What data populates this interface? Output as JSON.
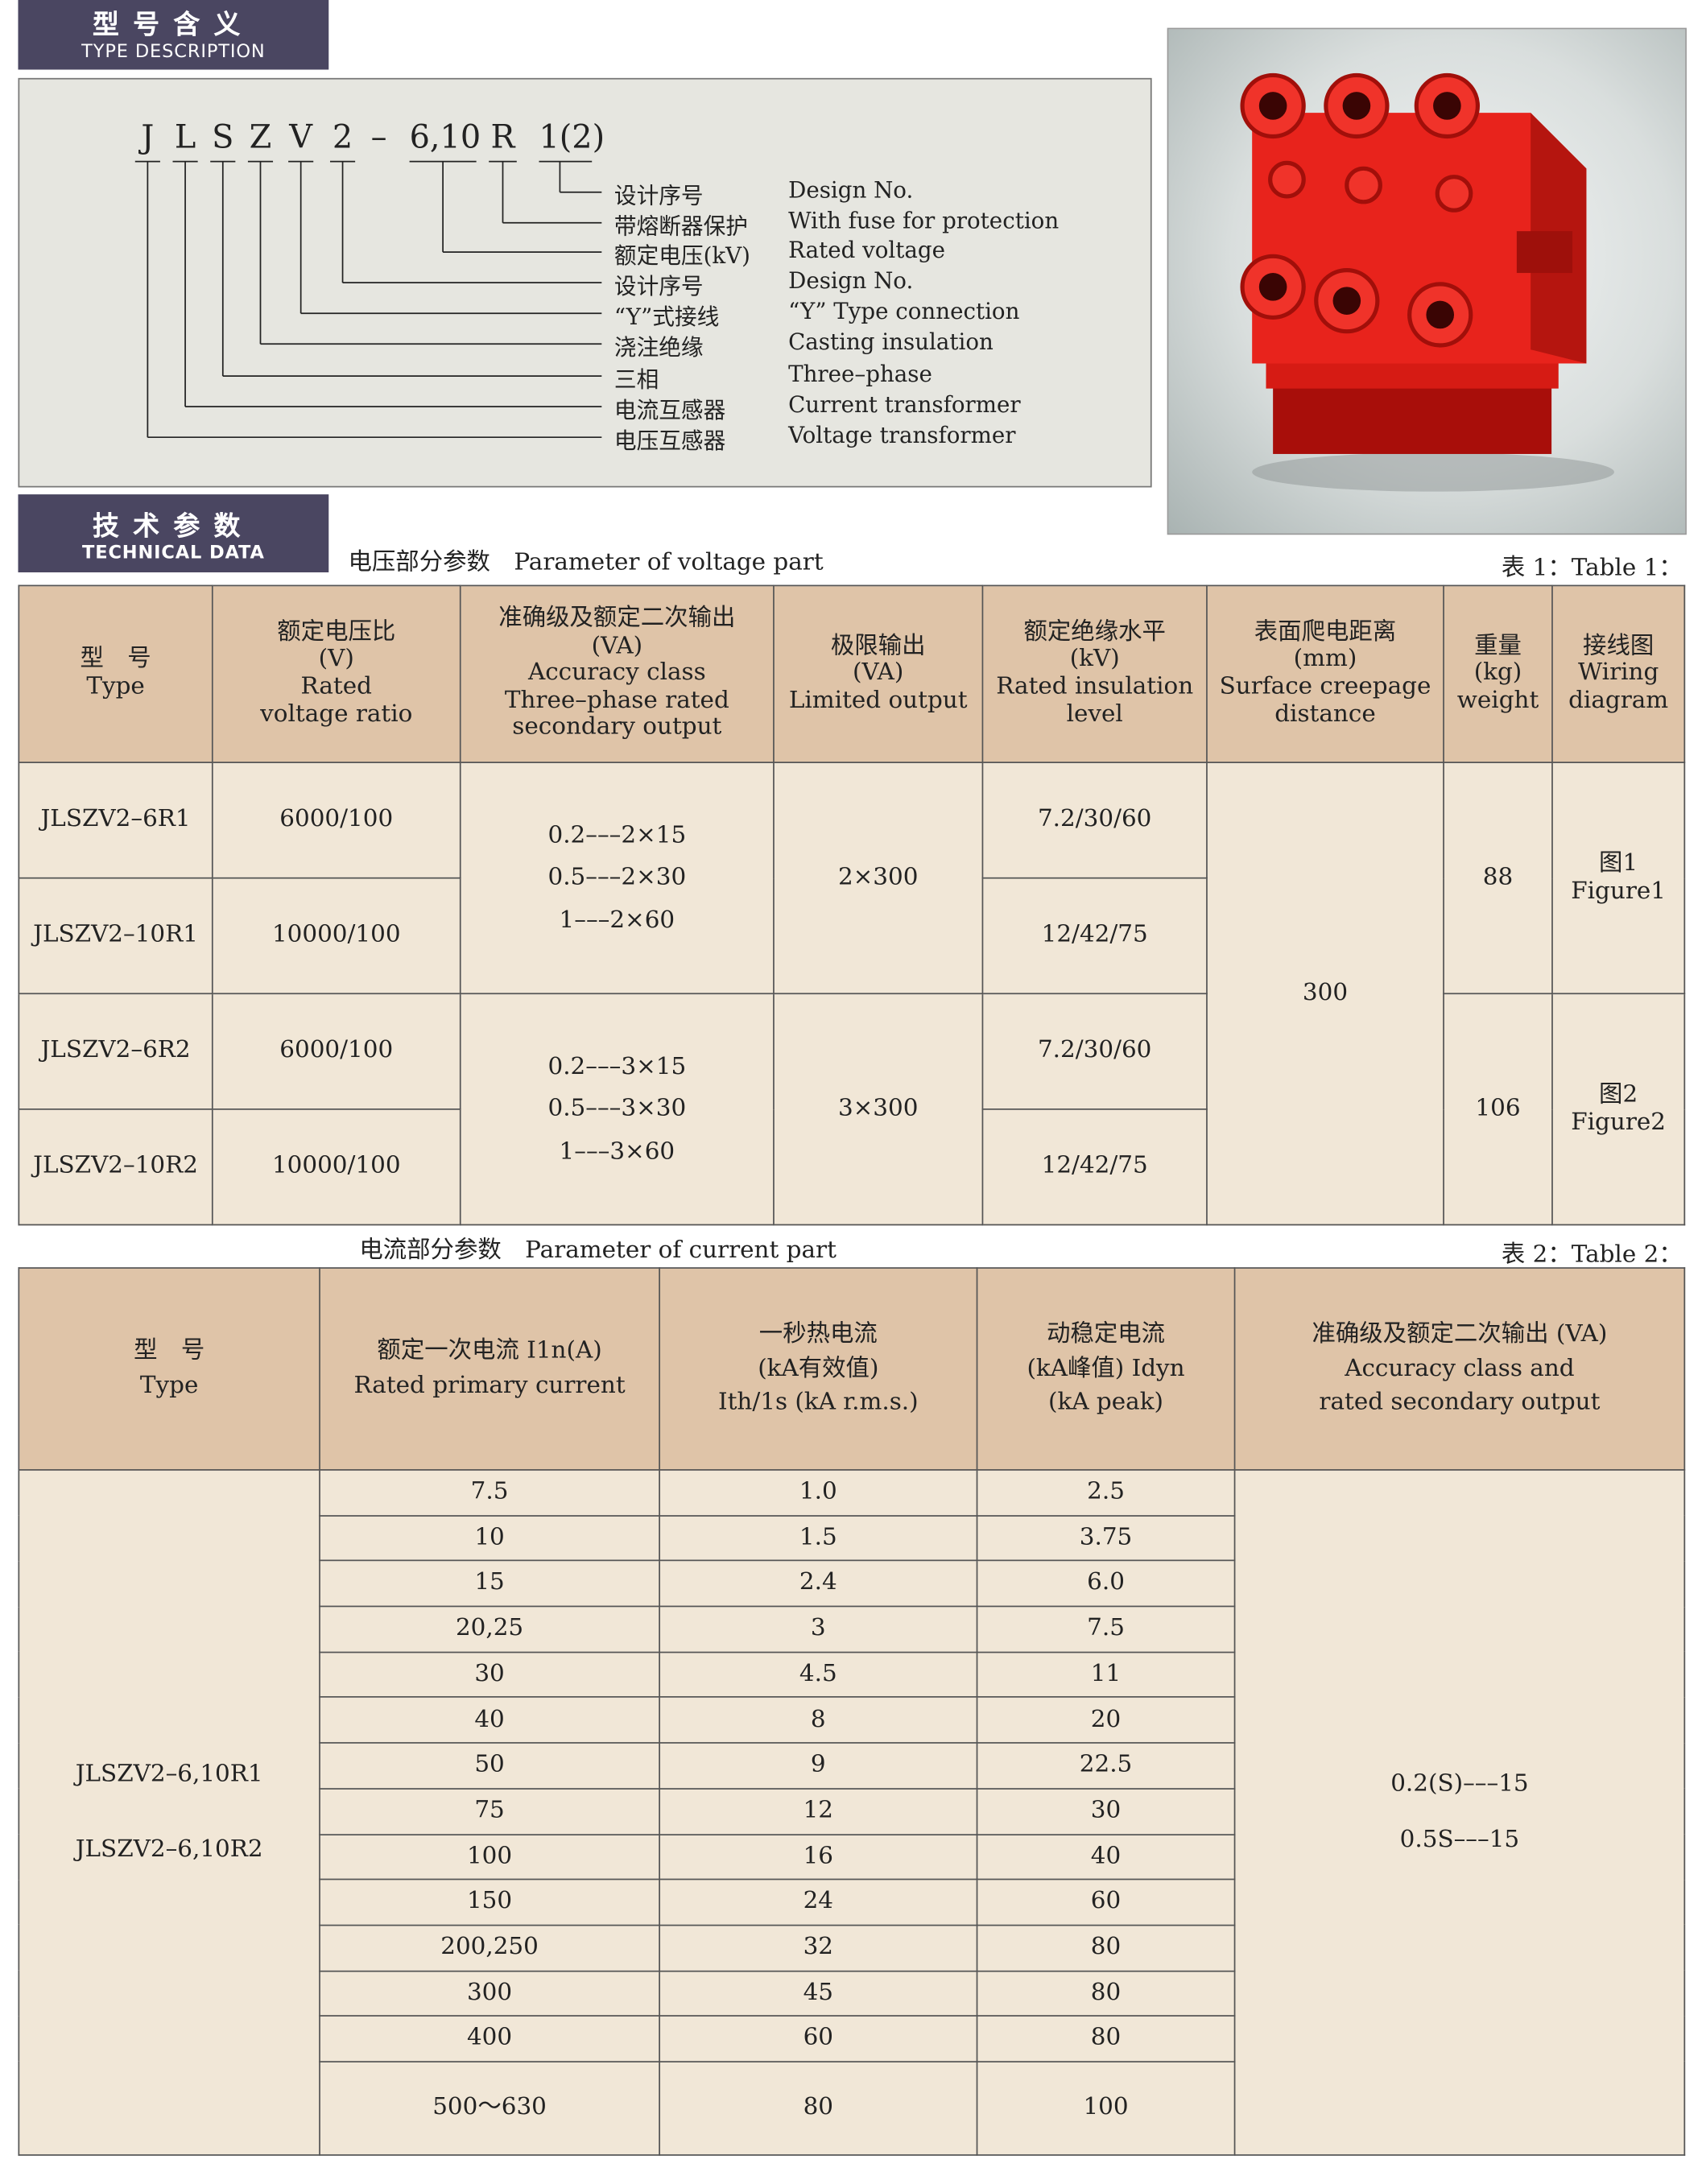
{
  "type_description": {
    "banner_cn": "型号含义",
    "banner_en": "TYPE DESCRIPTION",
    "code_parts": [
      "J",
      "L",
      "S",
      "Z",
      "V",
      "2",
      "–",
      "6,10",
      "R",
      "1(2)"
    ],
    "legend": [
      {
        "cn": "设计序号",
        "en": "Design No."
      },
      {
        "cn": "带熔断器保护",
        "en": "With fuse for protection"
      },
      {
        "cn": "额定电压(kV)",
        "en": "Rated voltage"
      },
      {
        "cn": "设计序号",
        "en": "Design No."
      },
      {
        "cn": "“Y”式接线",
        "en": "“Y” Type connection"
      },
      {
        "cn": "浇注绝缘",
        "en": "Casting insulation"
      },
      {
        "cn": "三相",
        "en": "Three–phase"
      },
      {
        "cn": "电流互感器",
        "en": "Current transformer"
      },
      {
        "cn": "电压互感器",
        "en": "Voltage transformer"
      }
    ]
  },
  "technical_data": {
    "banner_cn": "技术参数",
    "banner_en": "TECHNICAL DATA"
  },
  "table1": {
    "caption": "电压部分参数　Parameter of voltage part",
    "label": "表 1：Table 1：",
    "headers": [
      [
        "型　号",
        "Type"
      ],
      [
        "额定电压比",
        "(V)",
        "Rated",
        "voltage ratio"
      ],
      [
        "准确级及额定二次输出",
        "(VA)",
        "Accuracy class",
        "Three–phase rated",
        "secondary output"
      ],
      [
        "极限输出",
        "(VA)",
        "Limited output"
      ],
      [
        "额定绝缘水平",
        "(kV)",
        "Rated insulation",
        "level"
      ],
      [
        "表面爬电距离",
        "(mm)",
        "Surface creepage",
        "distance"
      ],
      [
        "重量",
        "(kg)",
        "weight"
      ],
      [
        "接线图",
        "Wiring",
        "diagram"
      ]
    ],
    "rows": [
      {
        "type": "JLSZV2–6R1",
        "ratio": "6000/100",
        "insulation": "7.2/30/60"
      },
      {
        "type": "JLSZV2–10R1",
        "ratio": "10000/100",
        "insulation": "12/42/75"
      },
      {
        "type": "JLSZV2–6R2",
        "ratio": "6000/100",
        "insulation": "7.2/30/60"
      },
      {
        "type": "JLSZV2–10R2",
        "ratio": "10000/100",
        "insulation": "12/42/75"
      }
    ],
    "groups": [
      {
        "accuracy": [
          "0.2–––2×15",
          "0.5–––2×30",
          "1–––2×60"
        ],
        "limited": "2×300",
        "weight": "88",
        "wiring": [
          "图1",
          "Figure1"
        ]
      },
      {
        "accuracy": [
          "0.2–––3×15",
          "0.5–––3×30",
          "1–––3×60"
        ],
        "limited": "3×300",
        "weight": "106",
        "wiring": [
          "图2",
          "Figure2"
        ]
      }
    ],
    "creepage": "300"
  },
  "table2": {
    "caption": "电流部分参数　Parameter of current part",
    "label": "表 2：Table 2：",
    "headers": [
      [
        "型　号",
        "Type"
      ],
      [
        "额定一次电流 I1n(A)",
        "Rated primary current"
      ],
      [
        "一秒热电流",
        "(kA有效值)",
        "Ith/1s (kA r.m.s.)"
      ],
      [
        "动稳定电流",
        "(kA峰值) Idyn",
        "(kA peak)"
      ],
      [
        "准确级及额定二次输出 (VA)",
        "Accuracy class and",
        "rated secondary output"
      ]
    ],
    "types": [
      "JLSZV2–6,10R1",
      "JLSZV2–6,10R2"
    ],
    "accuracy": [
      "0.2(S)–––15",
      "0.5S–––15"
    ],
    "rows": [
      [
        "7.5",
        "1.0",
        "2.5"
      ],
      [
        "10",
        "1.5",
        "3.75"
      ],
      [
        "15",
        "2.4",
        "6.0"
      ],
      [
        "20,25",
        "3",
        "7.5"
      ],
      [
        "30",
        "4.5",
        "11"
      ],
      [
        "40",
        "8",
        "20"
      ],
      [
        "50",
        "9",
        "22.5"
      ],
      [
        "75",
        "12",
        "30"
      ],
      [
        "100",
        "16",
        "40"
      ],
      [
        "150",
        "24",
        "60"
      ],
      [
        "200,250",
        "32",
        "80"
      ],
      [
        "300",
        "45",
        "80"
      ],
      [
        "400",
        "60",
        "80"
      ],
      [
        "500～630",
        "80",
        "100"
      ]
    ]
  },
  "colors": {
    "banner": "#4a4661",
    "header": "#dfc4a8",
    "body": "#f1e7d7",
    "product": "#e8231c"
  }
}
